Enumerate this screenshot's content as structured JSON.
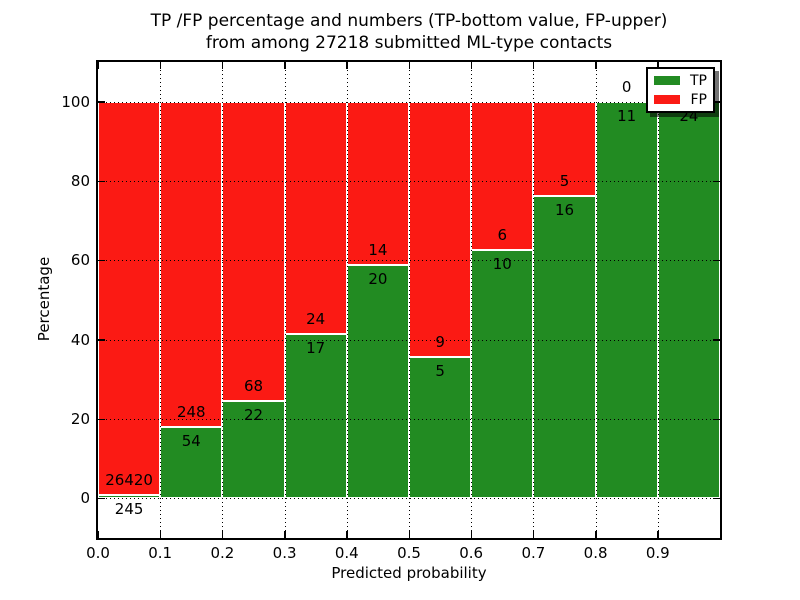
{
  "chart_data": {
    "type": "bar",
    "stacked": true,
    "normalized_to_percent": true,
    "title_line1": "TP /FP percentage and numbers (TP-bottom value, FP-upper)",
    "title_line2": "from among 27218 submitted ML-type contacts",
    "total_contacts": 27218,
    "xlabel": "Predicted probability",
    "ylabel": "Percentage",
    "xlim": [
      0.0,
      1.0
    ],
    "ylim": [
      -10,
      110
    ],
    "grid": "dotted",
    "bin_edges": [
      0.0,
      0.1,
      0.2,
      0.3,
      0.4,
      0.5,
      0.6,
      0.7,
      0.8,
      0.9,
      1.0
    ],
    "x_ticks": [
      {
        "value": 0.0,
        "label": "0.0"
      },
      {
        "value": 0.1,
        "label": "0.1"
      },
      {
        "value": 0.2,
        "label": "0.2"
      },
      {
        "value": 0.3,
        "label": "0.3"
      },
      {
        "value": 0.4,
        "label": "0.4"
      },
      {
        "value": 0.5,
        "label": "0.5"
      },
      {
        "value": 0.6,
        "label": "0.6"
      },
      {
        "value": 0.7,
        "label": "0.7"
      },
      {
        "value": 0.8,
        "label": "0.8"
      },
      {
        "value": 0.9,
        "label": "0.9"
      }
    ],
    "y_ticks": [
      {
        "value": 0,
        "label": "0"
      },
      {
        "value": 20,
        "label": "20"
      },
      {
        "value": 40,
        "label": "40"
      },
      {
        "value": 60,
        "label": "60"
      },
      {
        "value": 80,
        "label": "80"
      },
      {
        "value": 100,
        "label": "100"
      }
    ],
    "series": [
      {
        "name": "TP",
        "color": "#228b22",
        "values": [
          245,
          54,
          22,
          17,
          20,
          5,
          10,
          16,
          11,
          24
        ]
      },
      {
        "name": "FP",
        "color": "#fb1a14",
        "values": [
          26420,
          248,
          68,
          24,
          14,
          9,
          6,
          5,
          0,
          0
        ]
      }
    ],
    "legend": {
      "position": "upper right",
      "entries": [
        {
          "label": "TP",
          "color": "#228b22"
        },
        {
          "label": "FP",
          "color": "#fb1a14"
        }
      ]
    }
  }
}
